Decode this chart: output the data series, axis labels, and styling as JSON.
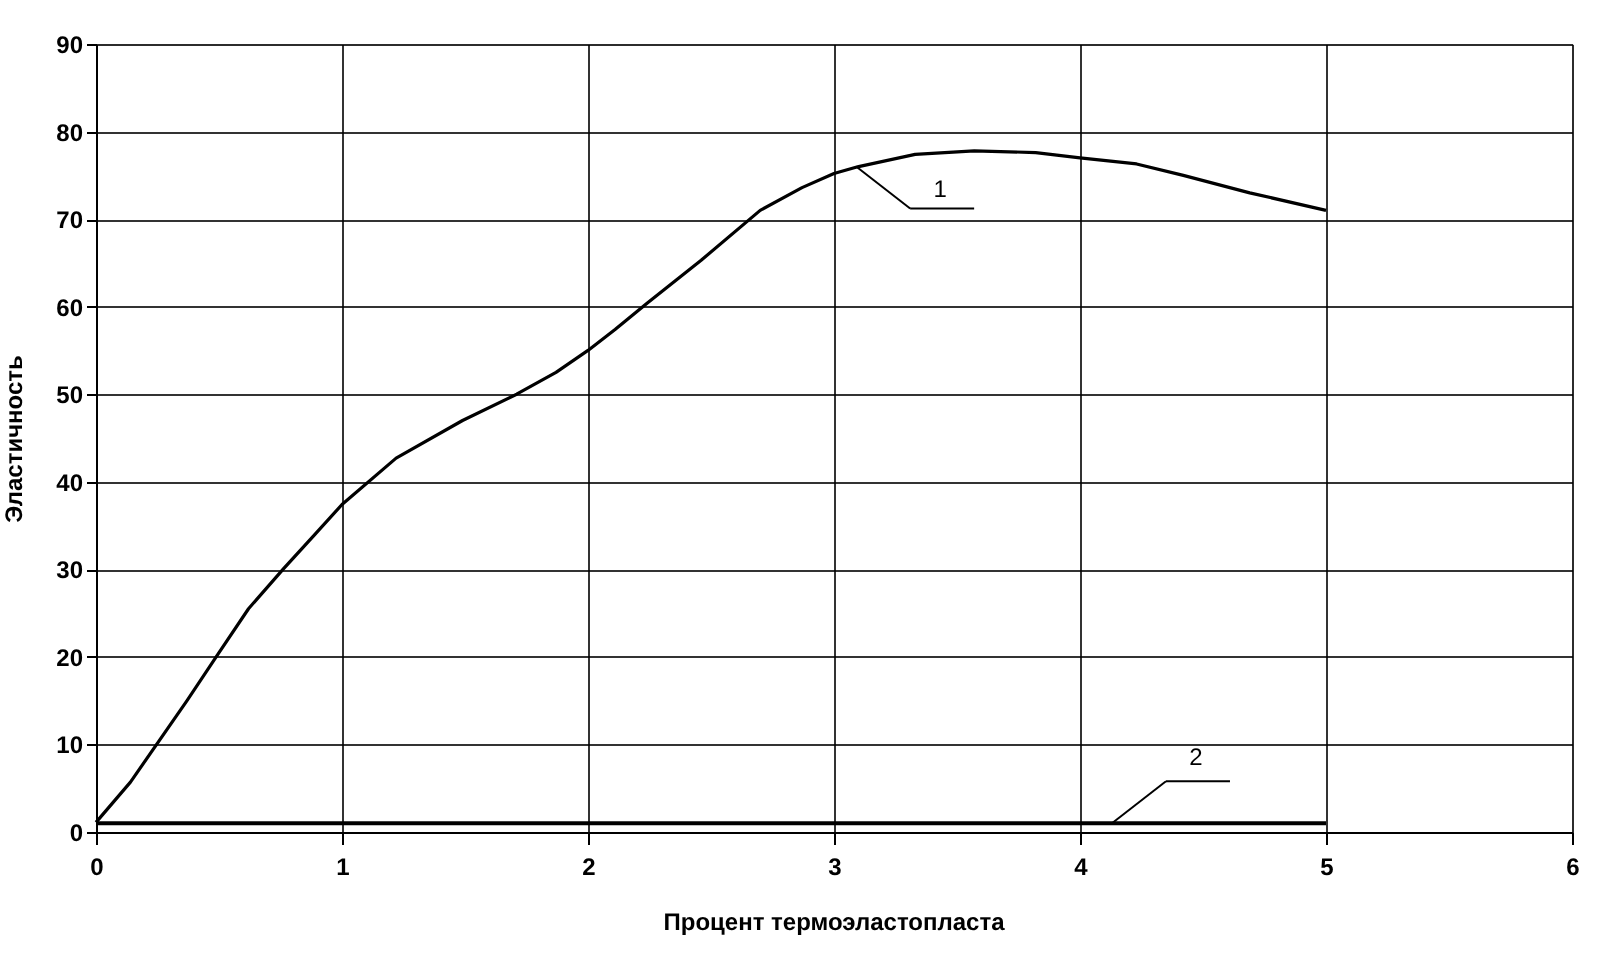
{
  "chart_data": {
    "type": "line",
    "xlabel": "Процент термоэластопласта",
    "ylabel": "Эластичность",
    "xlim": [
      0,
      6
    ],
    "xticks": [
      0,
      1,
      2,
      3,
      4,
      5,
      6
    ],
    "ylim": [
      0,
      90
    ],
    "yticks": [
      0,
      10,
      20,
      30,
      40,
      50,
      60,
      70,
      80,
      90
    ],
    "grid": true,
    "marker": "none",
    "line_style": "solid",
    "series": [
      {
        "color": "#000000",
        "x": [
          0,
          0.14,
          0.37,
          0.5,
          0.62,
          0.76,
          0.89,
          1.0,
          1.22,
          1.49,
          1.71,
          1.87,
          2.0,
          2.11,
          2.24,
          2.46,
          2.7,
          2.87,
          3.0,
          3.1,
          3.33,
          3.57,
          3.82,
          4.0,
          4.23,
          4.42,
          4.69,
          5.0
        ],
        "values": [
          1.1,
          5.7,
          15,
          20.5,
          25.5,
          30,
          34,
          37.4,
          42.7,
          47,
          50,
          52.5,
          55,
          57.4,
          60.4,
          65.3,
          71,
          73.6,
          75.2,
          76,
          77.4,
          77.8,
          77.6,
          77,
          76.3,
          75,
          73,
          71
        ]
      },
      {
        "color": "#000000",
        "x": [
          0,
          5
        ],
        "values": [
          1,
          1
        ]
      }
    ],
    "annotations": [
      {
        "text": "1",
        "x": 3.09,
        "y": 76
      },
      {
        "text": "2",
        "x": 4.13,
        "y": 1
      }
    ]
  }
}
